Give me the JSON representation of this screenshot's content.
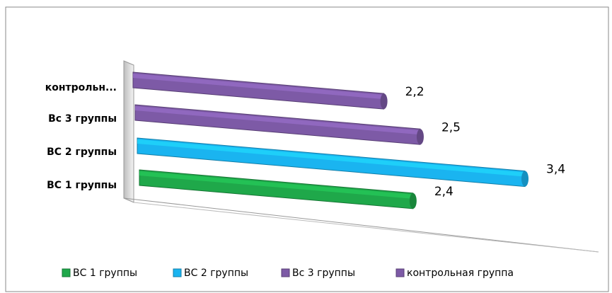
{
  "chart_data": {
    "type": "bar3d",
    "categories": [
      "ВС 1 группы",
      "ВС 2 группы",
      "Вс 3 группы",
      "контрольн..."
    ],
    "values": [
      2.4,
      3.4,
      2.5,
      2.2
    ],
    "value_labels": [
      "2,4",
      "3,4",
      "2,5",
      "2,2"
    ],
    "colors": [
      "#1fa84a",
      "#1ab4f0",
      "#7d5aa6",
      "#7d5aa6"
    ],
    "legend": [
      "ВС 1 группы",
      "ВС 2 группы",
      "Вс 3 группы",
      "контрольная группа"
    ]
  }
}
